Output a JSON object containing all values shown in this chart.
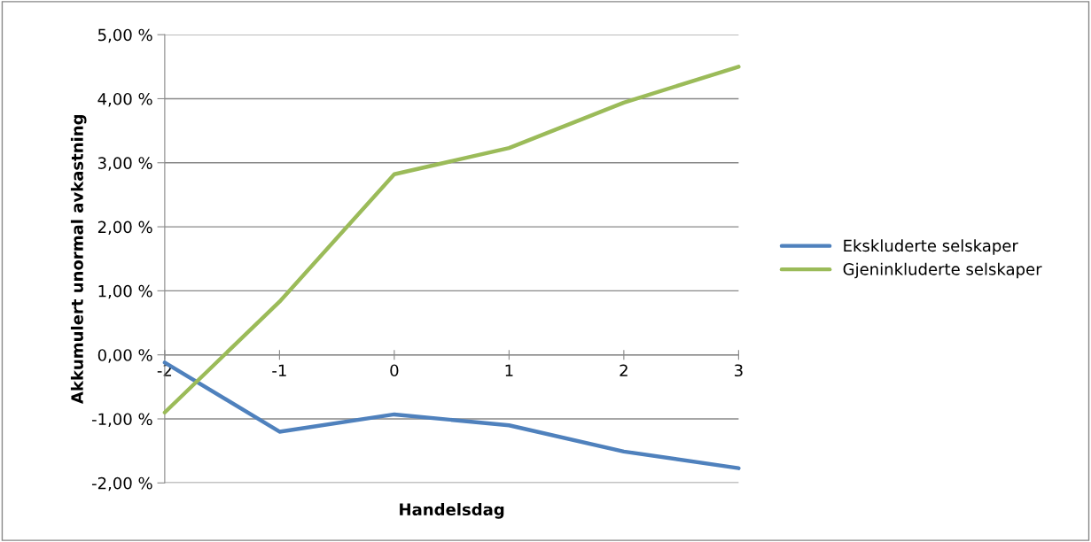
{
  "chart_data": {
    "type": "line",
    "xlabel": "Handelsdag",
    "ylabel": "Akkumulert unormal avkastning",
    "x": [
      -2,
      -1,
      0,
      1,
      2,
      3
    ],
    "series": [
      {
        "name": "Ekskluderte selskaper",
        "color": "#4f81bd",
        "values": [
          -0.12,
          -1.2,
          -0.93,
          -1.1,
          -1.51,
          -1.77
        ]
      },
      {
        "name": "Gjeninkluderte selskaper",
        "color": "#9bbb59",
        "values": [
          -0.9,
          0.83,
          2.82,
          3.23,
          3.94,
          4.5
        ]
      }
    ],
    "xlim": [
      -2,
      3
    ],
    "xticks": [
      -2,
      -1,
      0,
      1,
      2,
      3
    ],
    "ylim": [
      -2,
      5
    ],
    "yticks": [
      {
        "value": -2,
        "label": "-2,00 %"
      },
      {
        "value": -1,
        "label": "-1,00 %"
      },
      {
        "value": 0,
        "label": "0,00 %"
      },
      {
        "value": 1,
        "label": "1,00 %"
      },
      {
        "value": 2,
        "label": "2,00 %"
      },
      {
        "value": 3,
        "label": "3,00 %"
      },
      {
        "value": 4,
        "label": "4,00 %"
      },
      {
        "value": 5,
        "label": "5,00 %"
      }
    ],
    "grid": "y",
    "legend": "right",
    "marker": "none",
    "line_style": "solid"
  }
}
